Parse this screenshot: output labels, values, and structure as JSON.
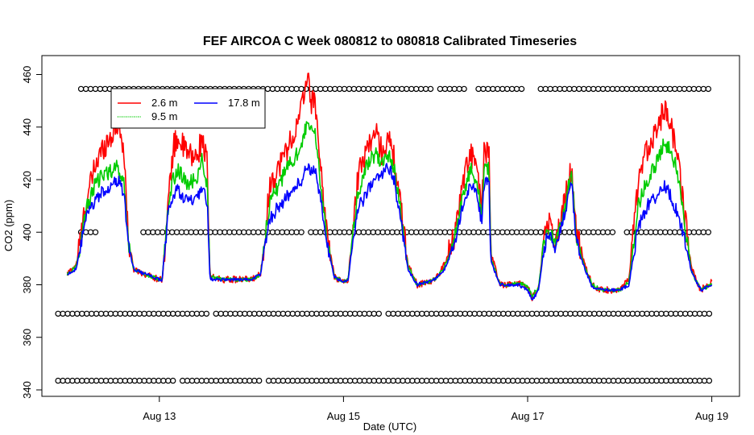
{
  "chart_data": {
    "type": "line",
    "title": "FEF AIRCOA C  Week 080812 to 080818  Calibrated Timeseries",
    "xlabel": "Date (UTC)",
    "ylabel": "CO2 (ppm)",
    "x_units": "days since Aug 12 00:00 UTC",
    "xlim": [
      0,
      7.3
    ],
    "ylim": [
      337,
      467
    ],
    "x_ticks": [
      {
        "value": 1,
        "label": "Aug 13"
      },
      {
        "value": 3,
        "label": "Aug 15"
      },
      {
        "value": 5,
        "label": "Aug 17"
      },
      {
        "value": 7,
        "label": "Aug 19"
      }
    ],
    "y_ticks": [
      {
        "value": 340,
        "label": "340"
      },
      {
        "value": 360,
        "label": "360"
      },
      {
        "value": 380,
        "label": "380"
      },
      {
        "value": 400,
        "label": "400"
      },
      {
        "value": 420,
        "label": "420"
      },
      {
        "value": 440,
        "label": "440"
      },
      {
        "value": 460,
        "label": "460"
      }
    ],
    "legend": {
      "placement": "top-left",
      "entries": [
        {
          "label": "2.6 m",
          "color": "#ff0000"
        },
        {
          "label": "17.8 m",
          "color": "#0000ff"
        },
        {
          "label": "9.5 m",
          "color": "#00cc00"
        }
      ]
    },
    "series": [
      {
        "name": "2.6 m",
        "color": "#ff0000",
        "noise": 5,
        "points": [
          [
            0,
            384
          ],
          [
            0.1,
            388
          ],
          [
            0.2,
            410
          ],
          [
            0.3,
            425
          ],
          [
            0.4,
            433
          ],
          [
            0.5,
            438
          ],
          [
            0.55,
            442
          ],
          [
            0.62,
            430
          ],
          [
            0.66,
            398
          ],
          [
            0.72,
            386
          ],
          [
            0.85,
            384
          ],
          [
            1.0,
            382
          ],
          [
            1.03,
            382
          ],
          [
            1.1,
            412
          ],
          [
            1.15,
            432
          ],
          [
            1.2,
            436
          ],
          [
            1.3,
            430
          ],
          [
            1.4,
            428
          ],
          [
            1.47,
            436
          ],
          [
            1.52,
            425
          ],
          [
            1.55,
            383
          ],
          [
            1.7,
            382
          ],
          [
            2.0,
            382
          ],
          [
            2.1,
            384
          ],
          [
            2.15,
            400
          ],
          [
            2.2,
            418
          ],
          [
            2.3,
            425
          ],
          [
            2.4,
            433
          ],
          [
            2.5,
            440
          ],
          [
            2.55,
            448
          ],
          [
            2.6,
            460
          ],
          [
            2.65,
            450
          ],
          [
            2.7,
            448
          ],
          [
            2.75,
            425
          ],
          [
            2.82,
            400
          ],
          [
            2.9,
            383
          ],
          [
            3.0,
            381
          ],
          [
            3.05,
            382
          ],
          [
            3.1,
            400
          ],
          [
            3.15,
            420
          ],
          [
            3.25,
            432
          ],
          [
            3.35,
            438
          ],
          [
            3.42,
            430
          ],
          [
            3.48,
            436
          ],
          [
            3.55,
            428
          ],
          [
            3.62,
            410
          ],
          [
            3.7,
            388
          ],
          [
            3.8,
            380
          ],
          [
            4.0,
            382
          ],
          [
            4.1,
            388
          ],
          [
            4.2,
            398
          ],
          [
            4.3,
            420
          ],
          [
            4.38,
            430
          ],
          [
            4.45,
            424
          ],
          [
            4.5,
            408
          ],
          [
            4.53,
            432
          ],
          [
            4.58,
            430
          ],
          [
            4.6,
            392
          ],
          [
            4.7,
            380
          ],
          [
            4.8,
            380
          ],
          [
            4.9,
            381
          ],
          [
            5.0,
            379
          ],
          [
            5.05,
            375
          ],
          [
            5.12,
            379
          ],
          [
            5.17,
            396
          ],
          [
            5.22,
            405
          ],
          [
            5.3,
            396
          ],
          [
            5.35,
            403
          ],
          [
            5.42,
            415
          ],
          [
            5.48,
            425
          ],
          [
            5.52,
            402
          ],
          [
            5.6,
            390
          ],
          [
            5.7,
            380
          ],
          [
            5.8,
            378
          ],
          [
            5.9,
            378
          ],
          [
            6.0,
            378
          ],
          [
            6.1,
            382
          ],
          [
            6.2,
            418
          ],
          [
            6.3,
            432
          ],
          [
            6.4,
            440
          ],
          [
            6.48,
            446
          ],
          [
            6.55,
            442
          ],
          [
            6.62,
            430
          ],
          [
            6.7,
            408
          ],
          [
            6.78,
            386
          ],
          [
            6.88,
            378
          ],
          [
            7.0,
            381
          ]
        ]
      },
      {
        "name": "9.5 m",
        "color": "#00cc00",
        "noise": 3,
        "points": [
          [
            0,
            384
          ],
          [
            0.1,
            387
          ],
          [
            0.2,
            408
          ],
          [
            0.3,
            418
          ],
          [
            0.4,
            422
          ],
          [
            0.5,
            424
          ],
          [
            0.55,
            425
          ],
          [
            0.62,
            418
          ],
          [
            0.66,
            397
          ],
          [
            0.72,
            386
          ],
          [
            0.85,
            384
          ],
          [
            1.0,
            382
          ],
          [
            1.03,
            382
          ],
          [
            1.1,
            410
          ],
          [
            1.15,
            420
          ],
          [
            1.2,
            424
          ],
          [
            1.3,
            418
          ],
          [
            1.4,
            420
          ],
          [
            1.47,
            428
          ],
          [
            1.52,
            418
          ],
          [
            1.55,
            383
          ],
          [
            1.7,
            382
          ],
          [
            2.0,
            382
          ],
          [
            2.1,
            384
          ],
          [
            2.15,
            398
          ],
          [
            2.2,
            412
          ],
          [
            2.3,
            418
          ],
          [
            2.4,
            425
          ],
          [
            2.5,
            430
          ],
          [
            2.55,
            435
          ],
          [
            2.6,
            440
          ],
          [
            2.65,
            438
          ],
          [
            2.7,
            437
          ],
          [
            2.75,
            418
          ],
          [
            2.82,
            398
          ],
          [
            2.9,
            383
          ],
          [
            3.0,
            381
          ],
          [
            3.05,
            382
          ],
          [
            3.1,
            398
          ],
          [
            3.15,
            414
          ],
          [
            3.25,
            425
          ],
          [
            3.35,
            430
          ],
          [
            3.42,
            426
          ],
          [
            3.48,
            430
          ],
          [
            3.55,
            424
          ],
          [
            3.62,
            408
          ],
          [
            3.7,
            387
          ],
          [
            3.8,
            380
          ],
          [
            4.0,
            382
          ],
          [
            4.1,
            387
          ],
          [
            4.2,
            396
          ],
          [
            4.3,
            415
          ],
          [
            4.38,
            424
          ],
          [
            4.45,
            420
          ],
          [
            4.5,
            405
          ],
          [
            4.53,
            425
          ],
          [
            4.58,
            424
          ],
          [
            4.6,
            390
          ],
          [
            4.7,
            380
          ],
          [
            4.8,
            380
          ],
          [
            4.9,
            381
          ],
          [
            5.0,
            379
          ],
          [
            5.05,
            376
          ],
          [
            5.12,
            379
          ],
          [
            5.17,
            394
          ],
          [
            5.22,
            402
          ],
          [
            5.3,
            395
          ],
          [
            5.35,
            401
          ],
          [
            5.42,
            412
          ],
          [
            5.48,
            424
          ],
          [
            5.52,
            400
          ],
          [
            5.6,
            389
          ],
          [
            5.7,
            380
          ],
          [
            5.8,
            378
          ],
          [
            5.9,
            378
          ],
          [
            6.0,
            378
          ],
          [
            6.1,
            381
          ],
          [
            6.2,
            410
          ],
          [
            6.3,
            420
          ],
          [
            6.4,
            426
          ],
          [
            6.48,
            434
          ],
          [
            6.55,
            432
          ],
          [
            6.62,
            424
          ],
          [
            6.7,
            404
          ],
          [
            6.78,
            385
          ],
          [
            6.88,
            378
          ],
          [
            7.0,
            380
          ]
        ]
      },
      {
        "name": "17.8 m",
        "color": "#0000ff",
        "noise": 2.5,
        "points": [
          [
            0,
            384
          ],
          [
            0.1,
            386
          ],
          [
            0.2,
            405
          ],
          [
            0.3,
            412
          ],
          [
            0.4,
            416
          ],
          [
            0.5,
            418
          ],
          [
            0.55,
            420
          ],
          [
            0.62,
            414
          ],
          [
            0.66,
            396
          ],
          [
            0.72,
            386
          ],
          [
            0.85,
            384
          ],
          [
            1.0,
            382
          ],
          [
            1.03,
            382
          ],
          [
            1.1,
            408
          ],
          [
            1.15,
            414
          ],
          [
            1.2,
            416
          ],
          [
            1.3,
            412
          ],
          [
            1.4,
            412
          ],
          [
            1.47,
            416
          ],
          [
            1.52,
            412
          ],
          [
            1.55,
            382
          ],
          [
            1.7,
            382
          ],
          [
            2.0,
            382
          ],
          [
            2.1,
            384
          ],
          [
            2.15,
            396
          ],
          [
            2.2,
            405
          ],
          [
            2.3,
            410
          ],
          [
            2.4,
            414
          ],
          [
            2.5,
            418
          ],
          [
            2.55,
            420
          ],
          [
            2.6,
            425
          ],
          [
            2.65,
            424
          ],
          [
            2.7,
            422
          ],
          [
            2.75,
            412
          ],
          [
            2.82,
            396
          ],
          [
            2.9,
            383
          ],
          [
            3.0,
            381
          ],
          [
            3.05,
            382
          ],
          [
            3.1,
            396
          ],
          [
            3.15,
            408
          ],
          [
            3.25,
            415
          ],
          [
            3.35,
            420
          ],
          [
            3.42,
            422
          ],
          [
            3.48,
            426
          ],
          [
            3.55,
            420
          ],
          [
            3.62,
            405
          ],
          [
            3.7,
            386
          ],
          [
            3.8,
            380
          ],
          [
            4.0,
            382
          ],
          [
            4.1,
            386
          ],
          [
            4.2,
            395
          ],
          [
            4.3,
            410
          ],
          [
            4.38,
            418
          ],
          [
            4.45,
            416
          ],
          [
            4.5,
            403
          ],
          [
            4.53,
            420
          ],
          [
            4.58,
            420
          ],
          [
            4.6,
            389
          ],
          [
            4.7,
            380
          ],
          [
            4.8,
            380
          ],
          [
            4.9,
            380
          ],
          [
            5.0,
            378
          ],
          [
            5.05,
            374
          ],
          [
            5.12,
            378
          ],
          [
            5.17,
            392
          ],
          [
            5.22,
            400
          ],
          [
            5.3,
            394
          ],
          [
            5.35,
            400
          ],
          [
            5.42,
            410
          ],
          [
            5.48,
            420
          ],
          [
            5.52,
            398
          ],
          [
            5.6,
            388
          ],
          [
            5.7,
            379
          ],
          [
            5.8,
            378
          ],
          [
            5.9,
            378
          ],
          [
            6.0,
            378
          ],
          [
            6.1,
            380
          ],
          [
            6.2,
            402
          ],
          [
            6.3,
            410
          ],
          [
            6.4,
            414
          ],
          [
            6.48,
            418
          ],
          [
            6.55,
            414
          ],
          [
            6.62,
            408
          ],
          [
            6.7,
            398
          ],
          [
            6.78,
            385
          ],
          [
            6.88,
            378
          ],
          [
            7.0,
            380
          ]
        ]
      }
    ],
    "marker_rows": [
      {
        "y": 454.5,
        "x_start": 0.15,
        "x_end": 7.0,
        "gaps": [
          [
            3.95,
            4.05
          ],
          [
            4.35,
            4.45
          ],
          [
            4.97,
            5.12
          ]
        ]
      },
      {
        "y": 400,
        "x_start": 0.15,
        "x_end": 7.0,
        "gaps": [
          [
            0.35,
            0.8
          ],
          [
            2.55,
            2.62
          ],
          [
            5.95,
            6.05
          ]
        ]
      },
      {
        "y": 369,
        "x_start": -0.1,
        "x_end": 7.0,
        "gaps": [
          [
            1.52,
            1.57
          ],
          [
            3.42,
            3.48
          ]
        ]
      },
      {
        "y": 343.5,
        "x_start": -0.1,
        "x_end": 7.0,
        "gaps": [
          [
            1.18,
            1.22
          ],
          [
            2.1,
            2.14
          ]
        ]
      }
    ]
  }
}
